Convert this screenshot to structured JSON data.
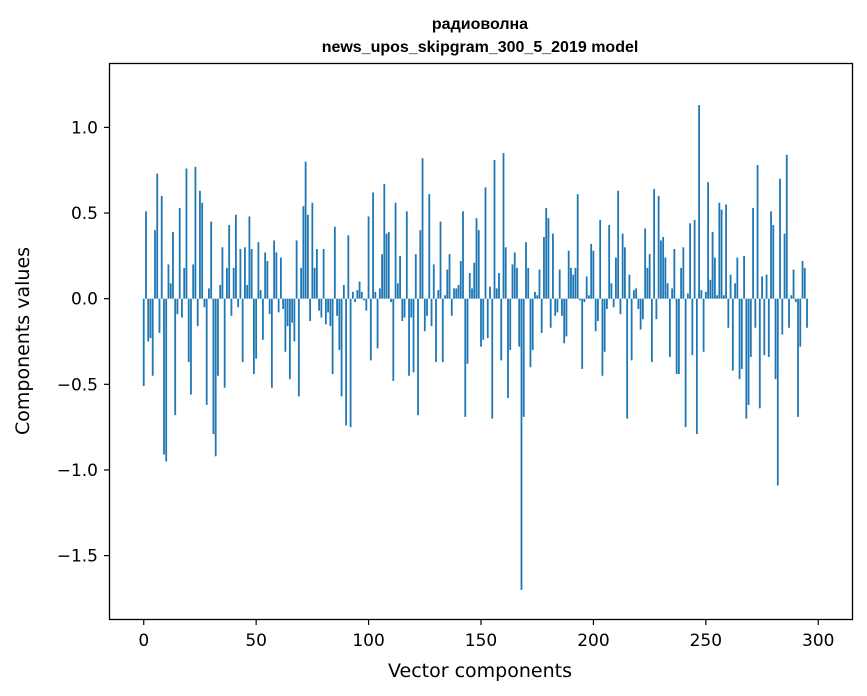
{
  "chart_data": {
    "type": "bar",
    "title": "радиоволна",
    "subtitle": "news_upos_skipgram_300_5_2019 model",
    "xlabel": "Vector components",
    "ylabel": "Components values",
    "xlim": [
      -15,
      315
    ],
    "ylim": [
      -1.87,
      1.37
    ],
    "x_ticks": [
      0,
      50,
      100,
      150,
      200,
      250,
      300
    ],
    "x_tick_labels": [
      "0",
      "50",
      "100",
      "150",
      "200",
      "250",
      "300"
    ],
    "y_ticks": [
      -1.5,
      -1.0,
      -0.5,
      0.0,
      0.5,
      1.0
    ],
    "y_tick_labels": [
      "−1.5",
      "−1.0",
      "−0.5",
      "0.0",
      "0.5",
      "1.0"
    ],
    "bar_color": "#1f77b4",
    "series": [
      {
        "name": "радиоволна",
        "values": [
          -0.51,
          0.51,
          -0.25,
          -0.23,
          -0.45,
          0.4,
          0.73,
          -0.2,
          0.6,
          -0.91,
          -0.95,
          0.2,
          0.09,
          0.39,
          -0.68,
          -0.09,
          0.53,
          -0.11,
          0.18,
          0.76,
          -0.37,
          -0.56,
          0.2,
          0.77,
          -0.16,
          0.63,
          0.56,
          -0.05,
          -0.62,
          0.06,
          0.45,
          -0.79,
          -0.92,
          -0.45,
          0.08,
          0.3,
          -0.52,
          0.18,
          0.43,
          -0.1,
          0.18,
          0.49,
          -0.05,
          0.29,
          -0.37,
          0.3,
          0.08,
          0.48,
          0.29,
          -0.44,
          -0.35,
          0.33,
          0.05,
          -0.24,
          0.27,
          0.22,
          -0.09,
          -0.52,
          0.34,
          0.27,
          -0.08,
          0.24,
          -0.06,
          -0.31,
          -0.16,
          -0.47,
          -0.14,
          -0.25,
          0.34,
          -0.57,
          0.18,
          0.54,
          0.8,
          0.49,
          -0.13,
          0.56,
          0.18,
          0.29,
          -0.07,
          -0.11,
          0.29,
          -0.15,
          -0.08,
          -0.16,
          -0.44,
          0.42,
          -0.1,
          -0.3,
          -0.57,
          0.08,
          -0.74,
          0.37,
          -0.75,
          0.04,
          -0.02,
          0.05,
          0.1,
          0.04,
          -0.01,
          -0.07,
          0.48,
          -0.36,
          0.62,
          0.04,
          -0.29,
          0.06,
          0.26,
          0.67,
          0.38,
          0.39,
          -0.02,
          -0.48,
          0.56,
          0.09,
          0.25,
          -0.13,
          -0.11,
          0.51,
          -0.45,
          -0.11,
          -0.43,
          0.26,
          -0.68,
          0.4,
          0.82,
          -0.19,
          -0.1,
          0.61,
          -0.16,
          0.2,
          -0.37,
          0.05,
          0.45,
          -0.37,
          0.02,
          0.17,
          0.26,
          -0.1,
          0.06,
          0.06,
          0.08,
          0.22,
          0.51,
          -0.69,
          -0.38,
          0.15,
          0.06,
          0.21,
          0.47,
          0.4,
          -0.28,
          -0.24,
          0.65,
          -0.23,
          0.07,
          -0.7,
          0.81,
          0.06,
          0.15,
          -0.36,
          0.85,
          0.3,
          -0.58,
          -0.3,
          0.2,
          0.27,
          0.18,
          -0.28,
          -1.7,
          -0.69,
          0.33,
          0.18,
          -0.4,
          -0.3,
          0.04,
          0.02,
          0.17,
          -0.2,
          0.36,
          0.53,
          0.47,
          -0.17,
          0.38,
          -0.1,
          -0.08,
          0.17,
          -0.1,
          -0.26,
          -0.22,
          0.28,
          0.18,
          0.14,
          0.18,
          0.61,
          -0.01,
          -0.41,
          -0.02,
          0.13,
          0.02,
          0.32,
          0.28,
          -0.19,
          -0.13,
          0.46,
          -0.45,
          -0.31,
          -0.06,
          0.43,
          0.09,
          -0.05,
          0.24,
          0.63,
          -0.09,
          0.38,
          0.3,
          -0.7,
          0.14,
          -0.36,
          0.05,
          0.06,
          -0.06,
          -0.18,
          -0.12,
          0.41,
          0.18,
          0.26,
          -0.37,
          0.64,
          -0.12,
          0.6,
          0.34,
          0.36,
          0.24,
          0.09,
          -0.34,
          0.06,
          0.29,
          -0.44,
          -0.44,
          0.18,
          0.3,
          -0.75,
          0.03,
          0.44,
          -0.33,
          0.46,
          -0.79,
          1.13,
          0.05,
          -0.31,
          0.04,
          0.68,
          0.11,
          0.39,
          0.24,
          0.02,
          0.56,
          0.52,
          0.02,
          0.55,
          -0.17,
          0.14,
          -0.42,
          0.09,
          0.24,
          -0.47,
          -0.41,
          0.25,
          -0.7,
          -0.62,
          -0.34,
          0.53,
          -0.17,
          0.78,
          -0.64,
          0.13,
          -0.33,
          0.14,
          -0.34,
          0.51,
          0.43,
          -0.47,
          -1.09,
          0.7,
          -0.21,
          0.38,
          0.84,
          -0.17,
          0.02,
          0.17,
          -0.02,
          -0.69,
          -0.28,
          0.22,
          0.18,
          -0.17
        ]
      }
    ]
  }
}
